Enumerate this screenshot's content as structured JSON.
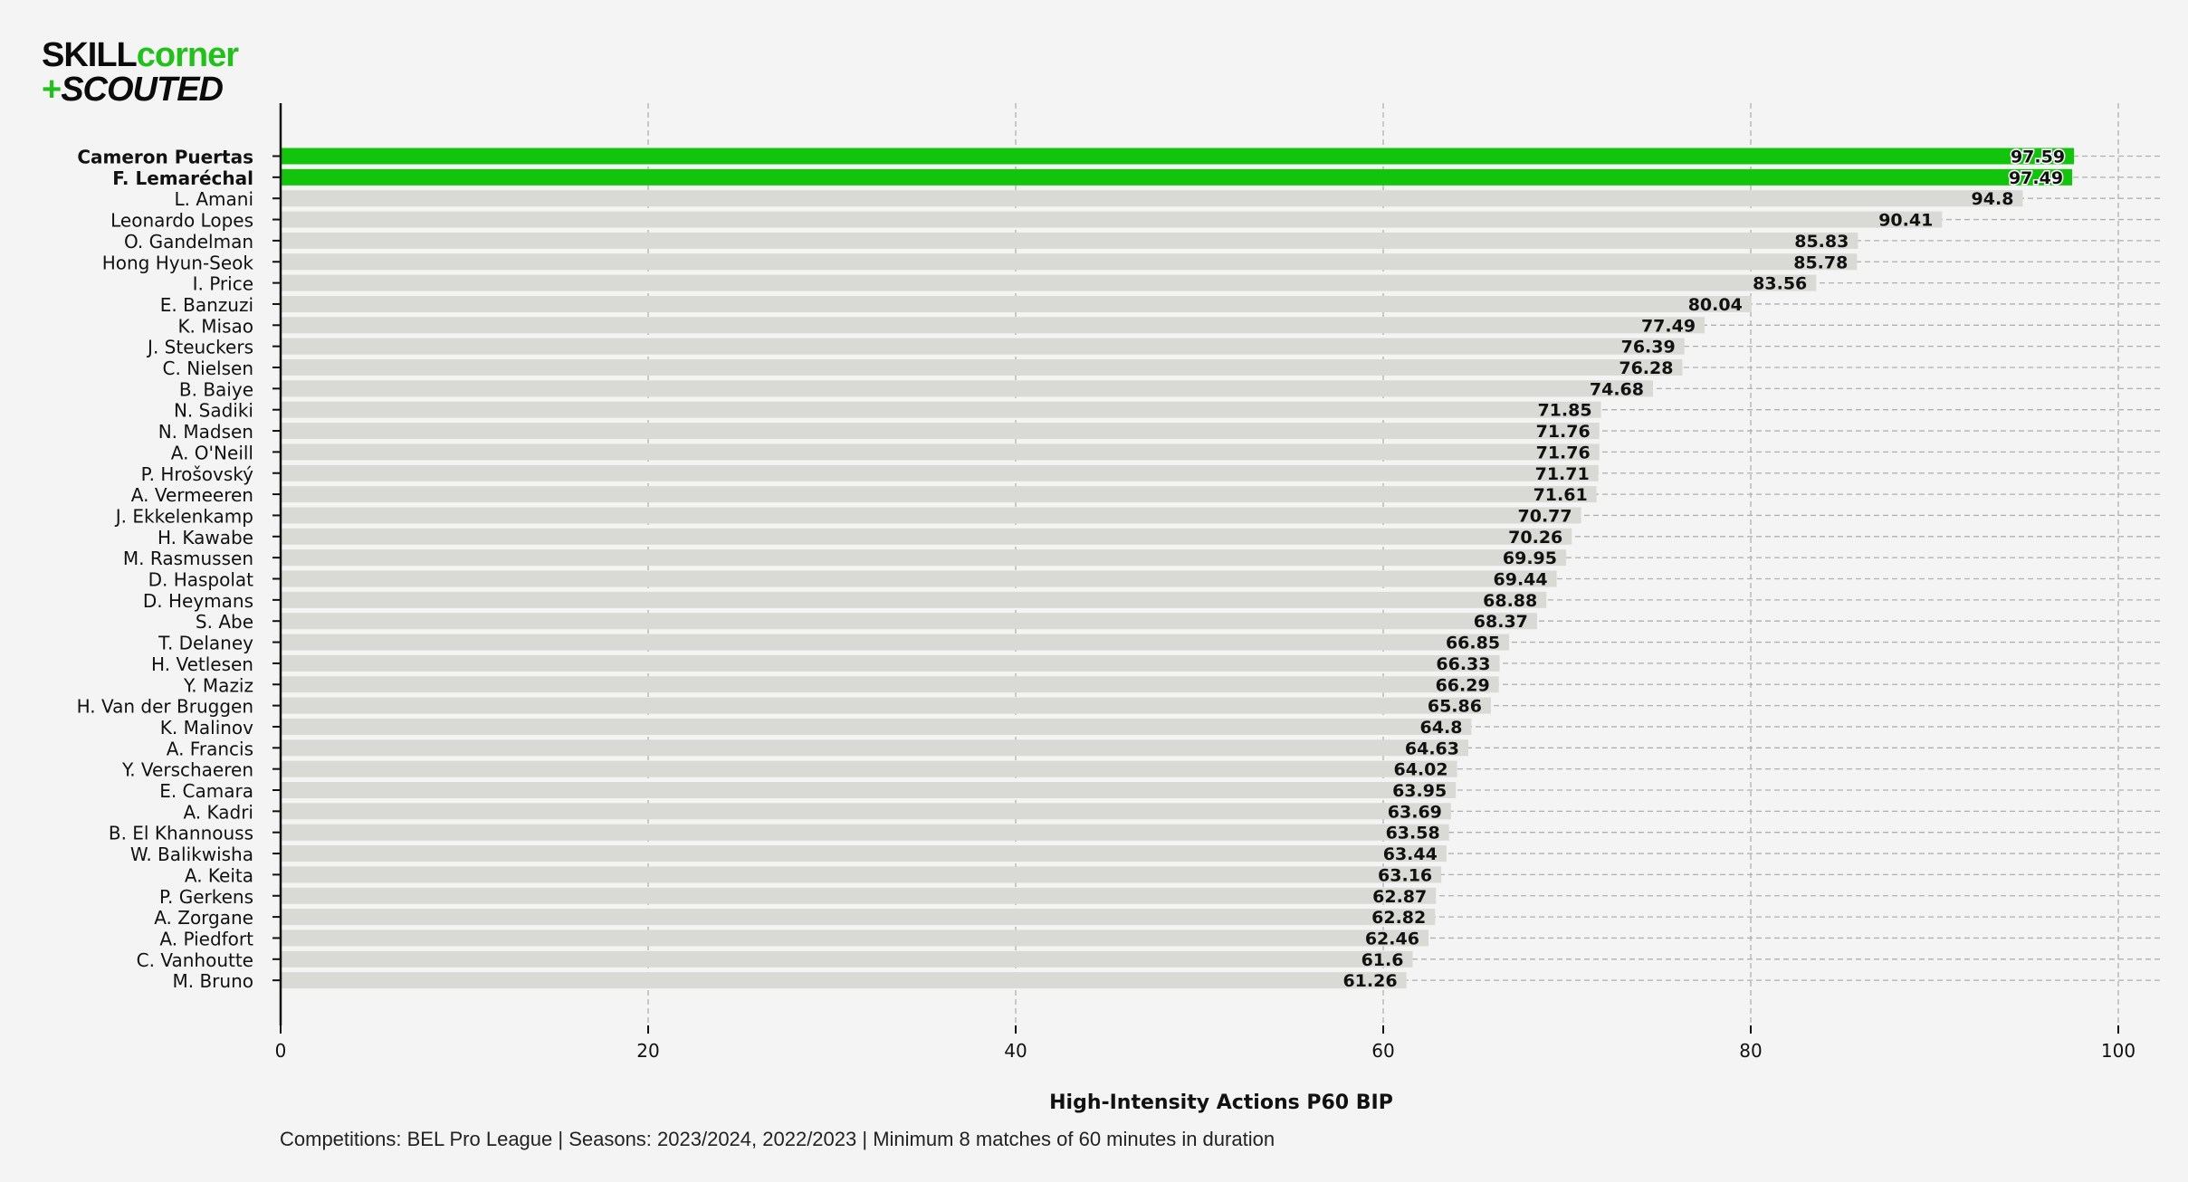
{
  "logo": {
    "word1": "SKILL",
    "word2": "corner",
    "plus": "+",
    "word3": "SCOUTED"
  },
  "footer_note": "Competitions: BEL Pro League | Seasons: 2023/2024, 2022/2023 | Minimum 8 matches of 60 minutes in duration",
  "colors": {
    "highlight": "#12c40c",
    "bar": "#d9d9d6",
    "background": "#f4f4f4",
    "grid": "#b0b0b0",
    "axis": "#111111"
  },
  "chart_data": {
    "type": "bar",
    "orientation": "horizontal",
    "xlabel": "High-Intensity Actions P60 BIP",
    "xlim": [
      0,
      100
    ],
    "xticks": [
      0,
      20,
      40,
      60,
      80,
      100
    ],
    "grid": "dashed vertical and horizontal",
    "highlighted": [
      "Cameron Puertas",
      "F. Lemaréchal"
    ],
    "categories": [
      "Cameron Puertas",
      "F. Lemaréchal",
      "L. Amani",
      "Leonardo Lopes",
      "O. Gandelman",
      "Hong Hyun-Seok",
      "I. Price",
      "E. Banzuzi",
      "K. Misao",
      "J. Steuckers",
      "C. Nielsen",
      "B. Baiye",
      "N. Sadiki",
      "N. Madsen",
      "A. O'Neill",
      "P. Hrošovský",
      "A. Vermeeren",
      "J. Ekkelenkamp",
      "H. Kawabe",
      "M. Rasmussen",
      "D. Haspolat",
      "D. Heymans",
      "S. Abe",
      "T. Delaney",
      "H. Vetlesen",
      "Y. Maziz",
      "H. Van der Bruggen",
      "K. Malinov",
      "A. Francis",
      "Y. Verschaeren",
      "E. Camara",
      "A. Kadri",
      "B. El Khannouss",
      "W. Balikwisha",
      "A. Keita",
      "P. Gerkens",
      "A. Zorgane",
      "A. Piedfort",
      "C. Vanhoutte",
      "M. Bruno"
    ],
    "values": [
      97.59,
      97.49,
      94.8,
      90.41,
      85.83,
      85.78,
      83.56,
      80.04,
      77.49,
      76.39,
      76.28,
      74.68,
      71.85,
      71.76,
      71.76,
      71.71,
      71.61,
      70.77,
      70.26,
      69.95,
      69.44,
      68.88,
      68.37,
      66.85,
      66.33,
      66.29,
      65.86,
      64.8,
      64.63,
      64.02,
      63.95,
      63.69,
      63.58,
      63.44,
      63.16,
      62.87,
      62.82,
      62.46,
      61.6,
      61.26
    ],
    "value_labels": [
      "97.59",
      "97.49",
      "94.8",
      "90.41",
      "85.83",
      "85.78",
      "83.56",
      "80.04",
      "77.49",
      "76.39",
      "76.28",
      "74.68",
      "71.85",
      "71.76",
      "71.76",
      "71.71",
      "71.61",
      "70.77",
      "70.26",
      "69.95",
      "69.44",
      "68.88",
      "68.37",
      "66.85",
      "66.33",
      "66.29",
      "65.86",
      "64.8",
      "64.63",
      "64.02",
      "63.95",
      "63.69",
      "63.58",
      "63.44",
      "63.16",
      "62.87",
      "62.82",
      "62.46",
      "61.6",
      "61.26"
    ]
  }
}
